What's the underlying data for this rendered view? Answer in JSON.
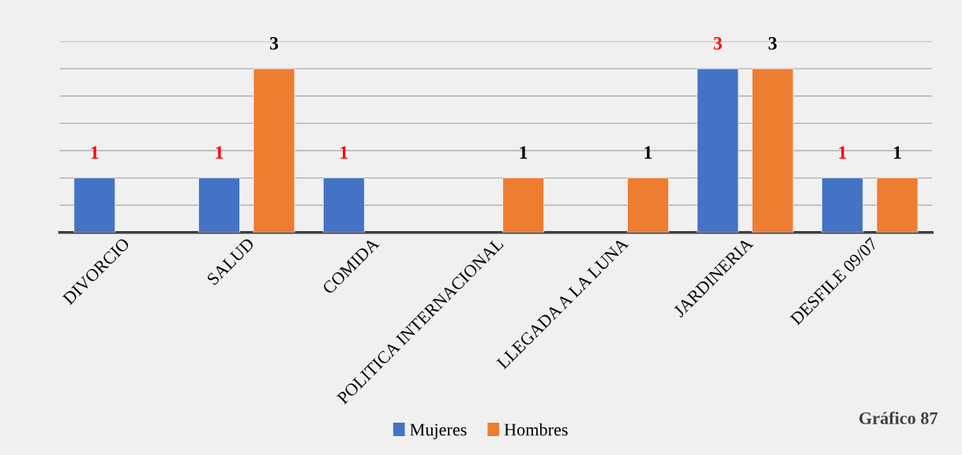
{
  "chart_data": {
    "type": "bar",
    "categories": [
      "DIVORCIO",
      "SALUD",
      "COMIDA",
      "POLITICA INTERNACIONAL",
      "LLEGADA A LA LUNA",
      "JARDINERIA",
      "DESFILE 09/07"
    ],
    "series": [
      {
        "name": "Mujeres",
        "color": "#4472c4",
        "values": [
          1,
          1,
          1,
          null,
          null,
          3,
          1
        ]
      },
      {
        "name": "Hombres",
        "color": "#ed7d31",
        "values": [
          null,
          3,
          null,
          1,
          1,
          3,
          1
        ]
      }
    ],
    "ylim": [
      0,
      3.5
    ],
    "yticks": [
      {
        "value": 0,
        "label": null
      },
      {
        "value": 0.5,
        "label": null
      },
      {
        "value": 1,
        "label": null
      },
      {
        "value": 1.5,
        "label": null
      },
      {
        "value": 2,
        "label": null
      },
      {
        "value": 2.5,
        "label": null
      },
      {
        "value": 3,
        "label": null
      },
      {
        "value": 3.5,
        "label": null
      }
    ],
    "tick_labels": "x",
    "grid": "y",
    "legend": "bottom",
    "data_labels": true,
    "annotations": [
      "Gráfico 87"
    ]
  }
}
